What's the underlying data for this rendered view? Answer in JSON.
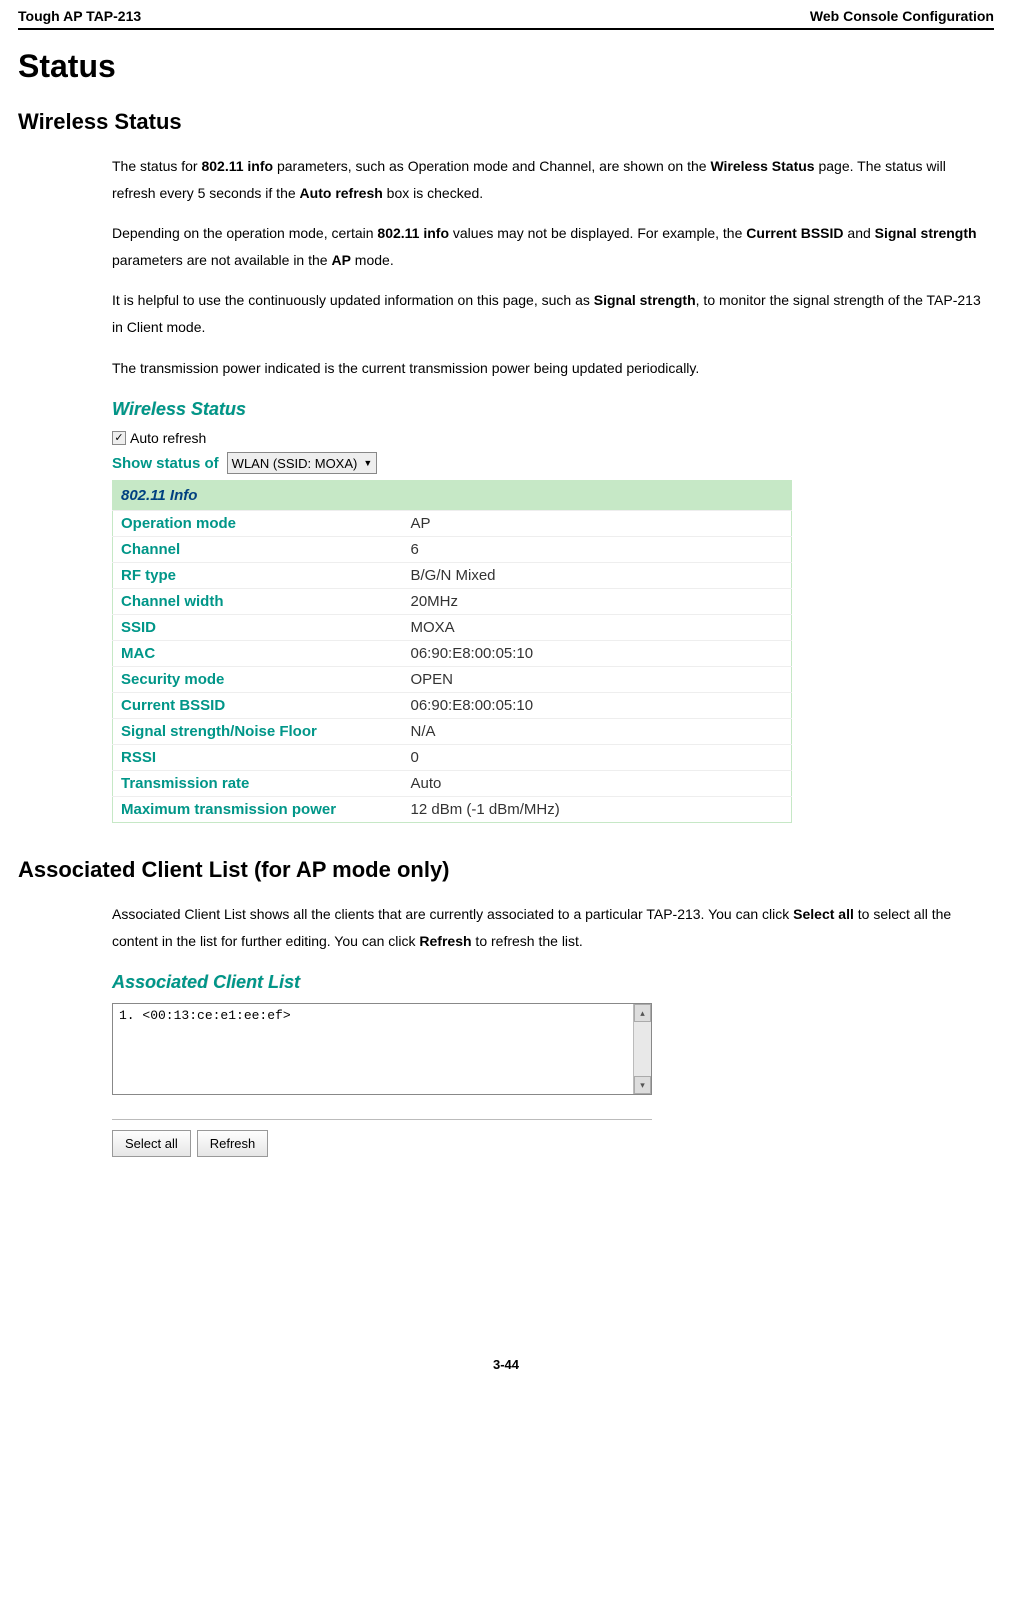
{
  "header": {
    "left": "Tough AP TAP-213",
    "right": "Web Console Configuration"
  },
  "h1": "Status",
  "h2_wireless": "Wireless Status",
  "paragraphs": {
    "p1a": "The status for ",
    "p1b": "802.11 info",
    "p1c": " parameters, such as Operation mode and Channel, are shown on the ",
    "p1d": "Wireless Status",
    "p1e": " page. The status will refresh every 5 seconds if the ",
    "p1f": "Auto refresh",
    "p1g": " box is checked.",
    "p2a": "Depending on the operation mode, certain ",
    "p2b": "802.11 info",
    "p2c": " values may not be displayed. For example, the ",
    "p2d": "Current BSSID",
    "p2e": " and ",
    "p2f": "Signal strength",
    "p2g": " parameters are not available in the ",
    "p2h": "AP",
    "p2i": " mode.",
    "p3a": "It is helpful to use the continuously updated information on this page, such as ",
    "p3b": "Signal strength",
    "p3c": ", to monitor the signal strength of the TAP-213 in Client mode.",
    "p4": "The transmission power indicated is the current transmission power being updated periodically."
  },
  "wireless_panel": {
    "title": "Wireless Status",
    "auto_refresh_label": "Auto refresh",
    "checkmark": "✓",
    "show_status_label": "Show status of",
    "dropdown_text": "WLAN (SSID: MOXA)",
    "caret": "▼",
    "section_header": "802.11 Info",
    "rows": [
      {
        "k": "Operation mode",
        "v": "AP"
      },
      {
        "k": "Channel",
        "v": "6"
      },
      {
        "k": "RF type",
        "v": "B/G/N Mixed"
      },
      {
        "k": "Channel width",
        "v": "20MHz"
      },
      {
        "k": "SSID",
        "v": "MOXA"
      },
      {
        "k": "MAC",
        "v": "06:90:E8:00:05:10"
      },
      {
        "k": "Security mode",
        "v": "OPEN"
      },
      {
        "k": "Current BSSID",
        "v": "06:90:E8:00:05:10"
      },
      {
        "k": "Signal strength/Noise Floor",
        "v": "N/A"
      },
      {
        "k": "RSSI",
        "v": "0"
      },
      {
        "k": "Transmission rate",
        "v": "Auto"
      },
      {
        "k": "Maximum transmission power",
        "v": "12 dBm (-1 dBm/MHz)"
      }
    ]
  },
  "h2_assoc": "Associated Client List (for AP mode only)",
  "assoc_text": {
    "a": "Associated Client List shows all the clients that are currently associated to a particular TAP-213. You can click ",
    "b": "Select all",
    "c": " to select all the content in the list for further editing. You can click ",
    "d": "Refresh",
    "e": " to refresh the list."
  },
  "assoc_panel": {
    "title": "Associated Client List",
    "list_item": "1.  <00:13:ce:e1:ee:ef>",
    "scroll_up": "▴",
    "scroll_down": "▾",
    "btn_select_all": "Select all",
    "btn_refresh": "Refresh"
  },
  "footer": "3-44"
}
